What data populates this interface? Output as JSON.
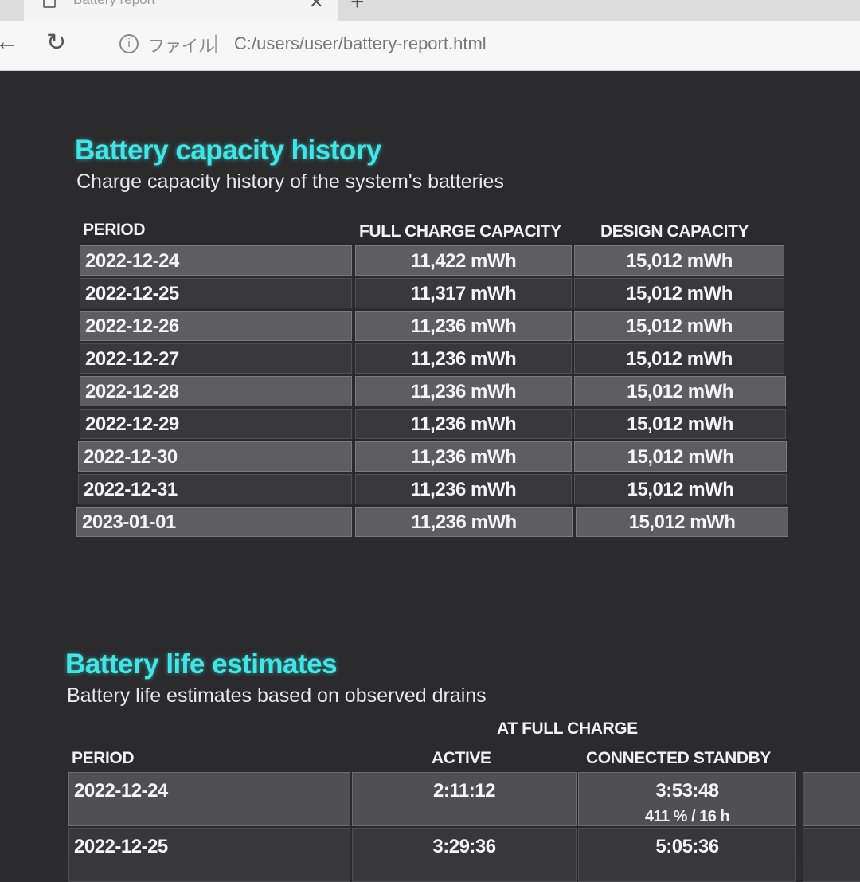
{
  "tab": {
    "title": "Battery report"
  },
  "address_bar": {
    "scheme_label": "ファイル",
    "url": "C:/users/user/battery-report.html"
  },
  "capacity_section": {
    "title": "Battery capacity history",
    "subtitle": "Charge capacity history of the system's batteries",
    "headers": {
      "period": "PERIOD",
      "full": "FULL CHARGE CAPACITY",
      "design": "DESIGN CAPACITY"
    },
    "rows": [
      {
        "period": "2022-12-24",
        "full": "11,422 mWh",
        "design": "15,012 mWh"
      },
      {
        "period": "2022-12-25",
        "full": "11,317 mWh",
        "design": "15,012 mWh"
      },
      {
        "period": "2022-12-26",
        "full": "11,236 mWh",
        "design": "15,012 mWh"
      },
      {
        "period": "2022-12-27",
        "full": "11,236 mWh",
        "design": "15,012 mWh"
      },
      {
        "period": "2022-12-28",
        "full": "11,236 mWh",
        "design": "15,012 mWh"
      },
      {
        "period": "2022-12-29",
        "full": "11,236 mWh",
        "design": "15,012 mWh"
      },
      {
        "period": "2022-12-30",
        "full": "11,236 mWh",
        "design": "15,012 mWh"
      },
      {
        "period": "2022-12-31",
        "full": "11,236 mWh",
        "design": "15,012 mWh"
      },
      {
        "period": "2023-01-01",
        "full": "11,236 mWh",
        "design": "15,012 mWh"
      }
    ]
  },
  "life_section": {
    "title": "Battery life estimates",
    "subtitle": "Battery life estimates based on observed drains",
    "group_header": "AT FULL CHARGE",
    "headers": {
      "period": "PERIOD",
      "active": "ACTIVE",
      "standby": "CONNECTED STANDBY"
    },
    "rows": [
      {
        "period": "2022-12-24",
        "active": "2:11:12",
        "standby": "3:53:48",
        "standby_note": "411 % / 16 h"
      },
      {
        "period": "2022-12-25",
        "active": "3:29:36",
        "standby": "5:05:36",
        "standby_note": ""
      }
    ]
  }
}
